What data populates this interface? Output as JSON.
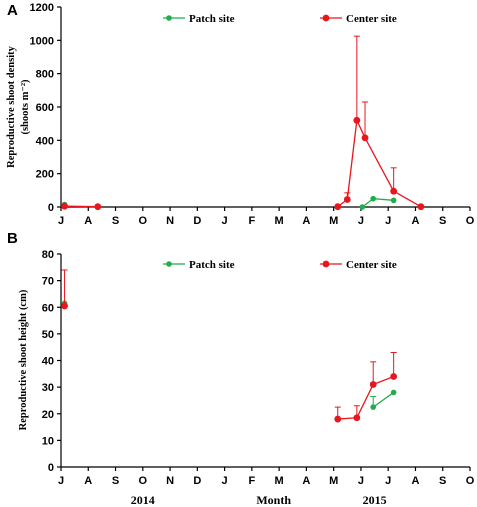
{
  "colors": {
    "patch": "#1fae4b",
    "center": "#e8161d"
  },
  "chart_data": [
    {
      "panel": "A",
      "type": "line",
      "ylabel_lines": [
        "Reproductive shoot density",
        "(shoots m⁻²)"
      ],
      "ylim": [
        0,
        1200
      ],
      "yticks": [
        0,
        200,
        400,
        600,
        800,
        1000,
        1200
      ],
      "x_months": [
        "J",
        "A",
        "S",
        "O",
        "N",
        "D",
        "J",
        "F",
        "M",
        "A",
        "M",
        "J",
        "J",
        "A",
        "S",
        "O"
      ],
      "series": [
        {
          "name": "Patch site",
          "points": [
            {
              "x": 0.13,
              "y": 15,
              "err": 0
            },
            {
              "x": 11.05,
              "y": 0,
              "err": 0
            },
            {
              "x": 11.45,
              "y": 50,
              "err": 0
            },
            {
              "x": 12.2,
              "y": 40,
              "err": 0
            }
          ]
        },
        {
          "name": "Center site",
          "points": [
            {
              "x": 0.13,
              "y": 5,
              "err": 0
            },
            {
              "x": 1.35,
              "y": 2,
              "err": 0
            },
            {
              "x": 10.15,
              "y": 2,
              "err": 0
            },
            {
              "x": 10.5,
              "y": 45,
              "err": 40
            },
            {
              "x": 10.85,
              "y": 520,
              "err": 505
            },
            {
              "x": 11.15,
              "y": 415,
              "err": 215
            },
            {
              "x": 12.2,
              "y": 95,
              "err": 140
            },
            {
              "x": 13.2,
              "y": 2,
              "err": 0
            }
          ]
        }
      ]
    },
    {
      "panel": "B",
      "type": "line",
      "ylabel_lines": [
        "Reproductive shoot height (cm)"
      ],
      "ylim": [
        0,
        80
      ],
      "yticks": [
        0,
        10,
        20,
        30,
        40,
        50,
        60,
        70,
        80
      ],
      "x_months": [
        "J",
        "A",
        "S",
        "O",
        "N",
        "D",
        "J",
        "F",
        "M",
        "A",
        "M",
        "J",
        "J",
        "A",
        "S",
        "O"
      ],
      "xlabel": "Month",
      "year_labels": [
        "2014",
        "2015"
      ],
      "series": [
        {
          "name": "Patch site",
          "points": [
            {
              "x": 0.13,
              "y": 61.5,
              "err": 0
            },
            {
              "x": 11.45,
              "y": 22.5,
              "err": 4
            },
            {
              "x": 12.2,
              "y": 28,
              "err": 0
            }
          ]
        },
        {
          "name": "Center site",
          "points": [
            {
              "x": 0.13,
              "y": 60.5,
              "err": 13.5
            },
            {
              "x": 10.15,
              "y": 18,
              "err": 4.5
            },
            {
              "x": 10.85,
              "y": 18.5,
              "err": 4.5
            },
            {
              "x": 11.45,
              "y": 31,
              "err": 8.5
            },
            {
              "x": 12.2,
              "y": 34,
              "err": 9
            }
          ]
        }
      ]
    }
  ]
}
